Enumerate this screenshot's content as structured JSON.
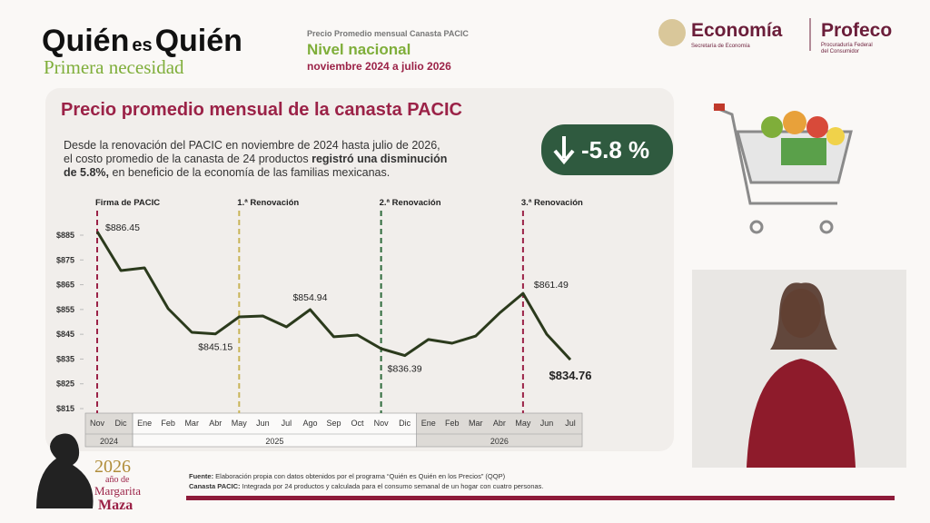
{
  "header": {
    "brand_part1": "Quién",
    "brand_part2": "es",
    "brand_part3": "Quién",
    "brand_sub": "Primera necesidad",
    "kicker": "Precio Promedio mensual Canasta PACIC",
    "title": "Nivel nacional",
    "period": "noviembre 2024 a julio 2026",
    "logo1": "Economía",
    "logo1_sub": "Secretaría de Economía",
    "logo2": "Profeco",
    "logo2_sub1": "Procuraduría Federal",
    "logo2_sub2": "del Consumidor"
  },
  "card": {
    "title": "Precio promedio mensual de la canasta PACIC",
    "line1": "Desde la renovación del PACIC en noviembre de 2024 hasta julio de 2026,",
    "line2_a": "el costo promedio de la canasta de 24 productos ",
    "line2_b": "registró una disminución",
    "line3_a": "de 5.8%,",
    "line3_b": " en beneficio de la economía de las familias mexicanas.",
    "badge": "-5.8 %"
  },
  "chart_data": {
    "type": "line",
    "categories": [
      "Nov",
      "Dic",
      "Ene",
      "Feb",
      "Mar",
      "Abr",
      "May",
      "Jun",
      "Jul",
      "Ago",
      "Sep",
      "Oct",
      "Nov",
      "Dic",
      "Ene",
      "Feb",
      "Mar",
      "Abr",
      "May",
      "Jun",
      "Jul"
    ],
    "year_groups": [
      {
        "label": "2024",
        "start": 0,
        "end": 1,
        "shaded": true
      },
      {
        "label": "2025",
        "start": 2,
        "end": 13,
        "shaded": false
      },
      {
        "label": "2026",
        "start": 14,
        "end": 20,
        "shaded": true
      }
    ],
    "series": [
      {
        "name": "Precio promedio",
        "color": "#2b3a1c",
        "values": [
          886.45,
          870.7,
          871.8,
          855.3,
          845.8,
          845.15,
          852.0,
          852.4,
          848.0,
          854.94,
          844.0,
          844.7,
          839.2,
          836.39,
          842.9,
          841.4,
          844.3,
          853.5,
          861.49,
          845.0,
          834.76
        ],
        "value_labels": [
          "$886.45",
          null,
          null,
          null,
          null,
          "$845.15",
          null,
          null,
          null,
          "$854.94",
          null,
          null,
          null,
          "$836.39",
          null,
          null,
          null,
          null,
          "$861.49",
          null,
          "$834.76"
        ]
      }
    ],
    "markers": [
      {
        "label": "Firma de PACIC",
        "position": 0,
        "color": "#9b2247"
      },
      {
        "label": "1.ª Renovación",
        "position": 6,
        "color": "#c9b458"
      },
      {
        "label": "2.ª Renovación",
        "position": 12,
        "color": "#2f6b3c"
      },
      {
        "label": "3.ª Renovación",
        "position": 18,
        "color": "#9b2247"
      }
    ],
    "ylim": [
      815,
      885
    ],
    "yticks": [
      {
        "value": 815,
        "label": "$815"
      },
      {
        "value": 825,
        "label": "$825"
      },
      {
        "value": 835,
        "label": "$835"
      },
      {
        "value": 845,
        "label": "$845"
      },
      {
        "value": 855,
        "label": "$855"
      },
      {
        "value": 865,
        "label": "$865"
      },
      {
        "value": 875,
        "label": "$875"
      },
      {
        "value": 885,
        "label": "$885"
      }
    ]
  },
  "footer": {
    "source_label": "Fuente:",
    "source_text": " Elaboración propia con datos obtenidos por el programa “Quién es Quién en los Precios” (QQP)",
    "note_label": "Canasta PACIC:",
    "note_text": " Integrada por 24 productos y calculada para el consumo semanal de un hogar con cuatro personas.",
    "year": "2026",
    "year_sub": "año de",
    "name1": "Margarita",
    "name2": "Maza"
  }
}
